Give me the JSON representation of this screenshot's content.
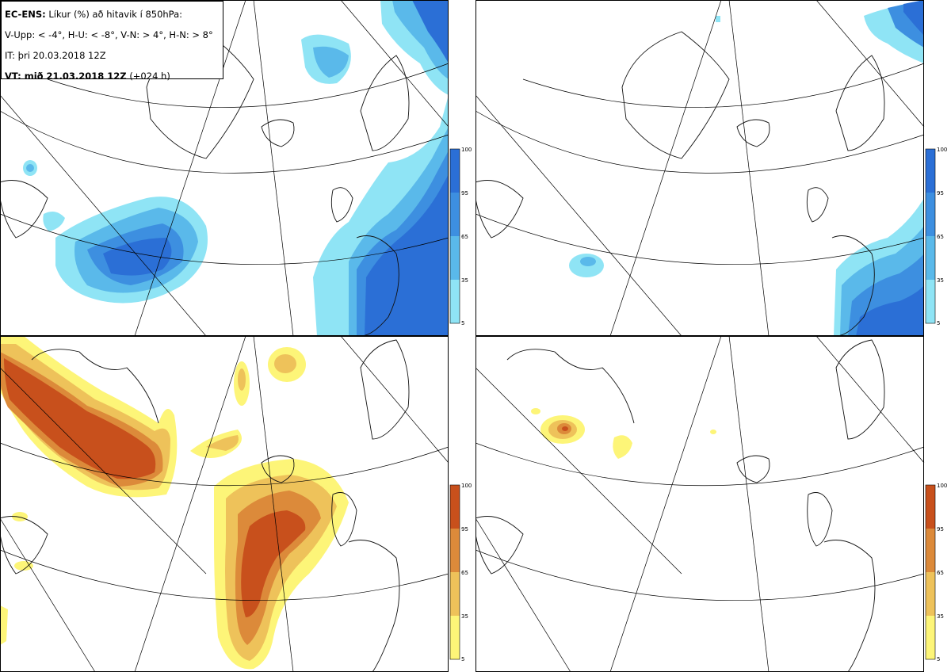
{
  "header": {
    "model": "EC-ENS:",
    "title_rest": "Líkur (%) að hitavik í 850hPa:",
    "categories": "V-Upp: < -4°, H-U: < -8°, V-N: > 4°, H-N: > 8°",
    "initial_time": "IT: þri 20.03.2018 12Z",
    "valid_label": "VT: mið 21.03.2018 12Z",
    "lead": "(+024 h)"
  },
  "colorbar_cold": {
    "ticks": [
      "100",
      "95",
      "65",
      "35",
      "5"
    ],
    "colors": [
      "#2b6fd6",
      "#3d8fe0",
      "#5ab9ea",
      "#8fe4f5"
    ]
  },
  "colorbar_warm": {
    "ticks": [
      "100",
      "95",
      "65",
      "35",
      "5"
    ],
    "colors": [
      "#c8501c",
      "#dc8a3a",
      "#eec25a",
      "#fdf578"
    ]
  },
  "panels": [
    {
      "id": "upper-left",
      "variable": "V-Upp",
      "scheme": "cold"
    },
    {
      "id": "upper-right",
      "variable": "H-U",
      "scheme": "cold"
    },
    {
      "id": "lower-left",
      "variable": "V-N",
      "scheme": "warm"
    },
    {
      "id": "lower-right",
      "variable": "H-N",
      "scheme": "warm"
    }
  ]
}
